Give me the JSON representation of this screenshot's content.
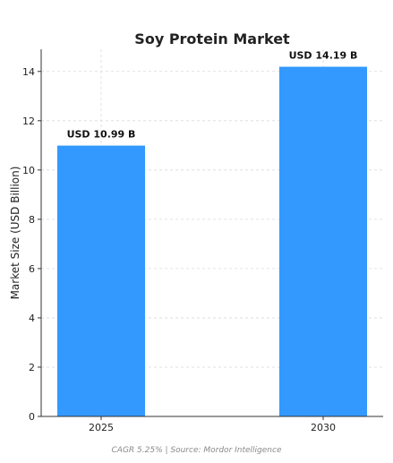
{
  "chart_data": {
    "type": "bar",
    "title": "Soy Protein Market",
    "xlabel": "",
    "ylabel": "Market Size (USD Billion)",
    "categories": [
      "2025",
      "2030"
    ],
    "values": [
      10.99,
      14.19
    ],
    "data_labels": [
      "USD 10.99 B",
      "USD 14.19 B"
    ],
    "ylim": [
      0,
      14.9
    ],
    "yticks": [
      0,
      2,
      4,
      6,
      8,
      10,
      12,
      14
    ],
    "grid": true,
    "bar_color": "#3399ff",
    "legend": "none"
  },
  "footer": {
    "text": "CAGR 5.25% | Source: Mordor Intelligence"
  }
}
